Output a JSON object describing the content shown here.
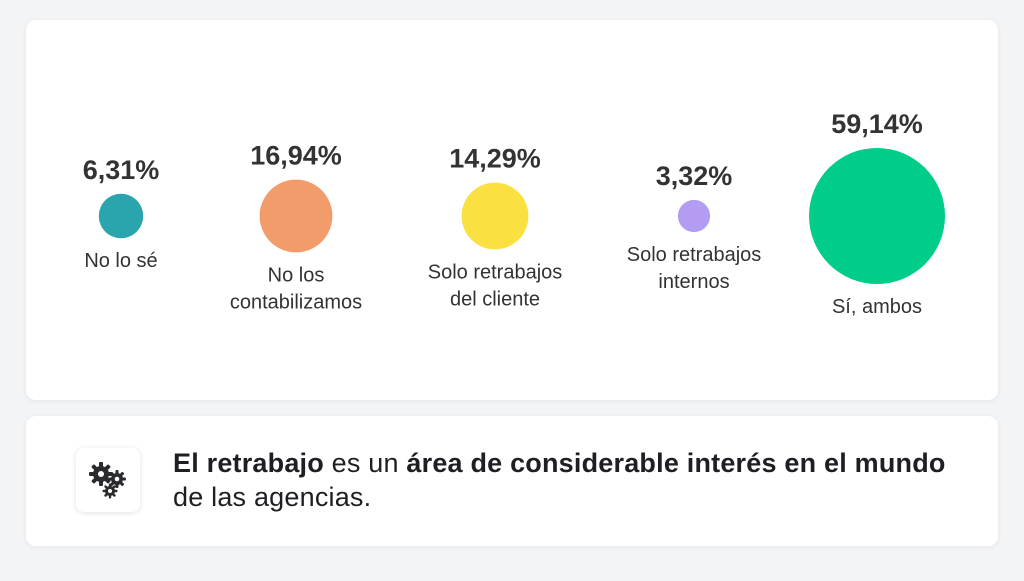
{
  "chart_data": {
    "type": "bubble",
    "categories": [
      "No lo sé",
      "No los contabilizamos",
      "Solo retrabajos del cliente",
      "Solo retrabajos internos",
      "Sí, ambos"
    ],
    "category_lines": [
      [
        "No lo sé"
      ],
      [
        "No los",
        "contabilizamos"
      ],
      [
        "Solo retrabajos",
        "del cliente"
      ],
      [
        "Solo retrabajos",
        "internos"
      ],
      [
        "Sí, ambos"
      ]
    ],
    "values": [
      6.31,
      16.94,
      14.29,
      3.32,
      59.14
    ],
    "value_labels": [
      "6,31%",
      "16,94%",
      "14,29%",
      "3,32%",
      "59,14%"
    ],
    "colors": [
      "#2aa5ad",
      "#f39c6b",
      "#fbe042",
      "#b49cf3",
      "#00cd89"
    ],
    "legend": "none",
    "grid": false
  },
  "info": {
    "icon": "gears-icon",
    "segments": [
      {
        "text": "El retrabajo",
        "bold": true
      },
      {
        "text": " es un ",
        "bold": false
      },
      {
        "text": "área de considerable interés en el mundo",
        "bold": true
      },
      {
        "text": " de las agencias.",
        "bold": false
      }
    ]
  },
  "colors": {
    "text": "#333333",
    "background": "#f3f4f6",
    "card": "#ffffff"
  }
}
